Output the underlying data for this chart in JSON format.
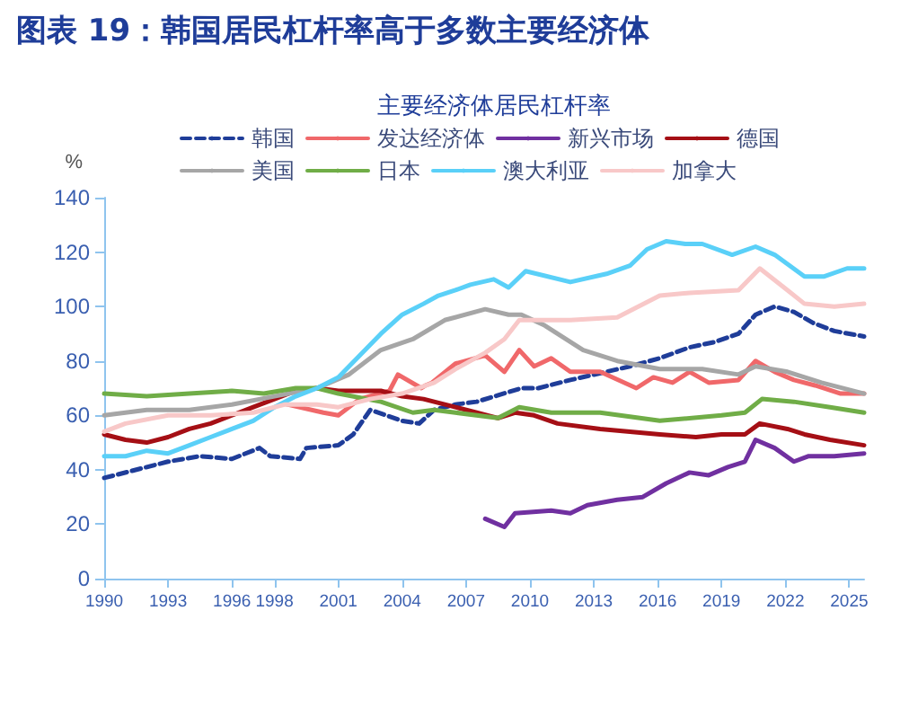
{
  "chart_data": {
    "type": "line",
    "title": "图表 19：韩国居民杠杆率高于多数主要经济体",
    "subtitle": "主要经济体居民杠杆率",
    "ylabel": "%",
    "xlim": [
      1990,
      2025.7
    ],
    "xticks": [
      1990,
      1993,
      1996,
      1998,
      2001,
      2004,
      2007,
      2010,
      2013,
      2016,
      2019,
      2022,
      2025
    ],
    "ylim": [
      0,
      140
    ],
    "yticks": [
      0,
      20,
      40,
      60,
      80,
      100,
      120,
      140
    ],
    "grid": false,
    "legend": "top",
    "marker": "none",
    "series": [
      {
        "name": "韩国",
        "color": "#1f3d99",
        "line_style": "dashed",
        "x": [
          1990,
          1993,
          1994.5,
          1996,
          1997.3,
          1997.8,
          1999.2,
          1999.5,
          2001,
          2001.7,
          2002.5,
          2004,
          2004.8,
          2005.5,
          2006.5,
          2007.5,
          2009.6,
          2010.4,
          2011.9,
          2014.7,
          2016.1,
          2017.5,
          2018.7,
          2019.8,
          2020.6,
          2021.5,
          2022.4,
          2023.3,
          2024.3,
          2025.7
        ],
        "values": [
          37,
          43,
          45,
          44,
          48,
          45,
          44,
          48,
          49,
          53,
          62,
          58,
          57,
          62,
          64,
          65,
          70,
          70,
          73,
          78,
          81,
          85,
          87,
          90,
          97,
          100,
          98,
          94,
          91,
          89
        ]
      },
      {
        "name": "发达经济体",
        "color": "#f0686a",
        "line_style": "solid",
        "x": [
          1998.6,
          2000.3,
          2001,
          2002,
          2003.4,
          2003.8,
          2004.9,
          2005.1,
          2005.4,
          2006.5,
          2007.9,
          2008.8,
          2009.5,
          2010.2,
          2011,
          2011.9,
          2013.3,
          2015,
          2015.8,
          2016.7,
          2017.5,
          2018.4,
          2019.8,
          2020.6,
          2021.5,
          2022.4,
          2023.4,
          2024.6,
          2025.7
        ],
        "values": [
          64,
          61,
          60,
          66,
          69,
          75,
          70,
          71,
          72,
          79,
          82,
          76,
          84,
          78,
          81,
          76,
          76,
          70,
          74,
          72,
          76,
          72,
          73,
          80,
          76,
          73,
          71,
          68,
          68
        ]
      },
      {
        "name": "新兴市场",
        "color": "#7030a0",
        "line_style": "solid",
        "x": [
          2007.9,
          2008.8,
          2009.3,
          2011,
          2011.9,
          2012.7,
          2014.1,
          2015.3,
          2016.4,
          2017.5,
          2018.4,
          2019.3,
          2020.1,
          2020.6,
          2021.5,
          2022.4,
          2023.1,
          2024.3,
          2025.7
        ],
        "values": [
          22,
          19,
          24,
          25,
          24,
          27,
          29,
          30,
          35,
          39,
          38,
          41,
          43,
          51,
          48,
          43,
          45,
          45,
          46
        ]
      },
      {
        "name": "德国",
        "color": "#a50f15",
        "line_style": "solid",
        "x": [
          1990,
          1991,
          1992,
          1993,
          1994,
          1995,
          1996,
          1997,
          1998,
          1999,
          2000,
          2001,
          2003,
          2004,
          2005,
          2006.5,
          2007.5,
          2008.5,
          2009.3,
          2010.2,
          2011.3,
          2013.3,
          2014.7,
          2016.1,
          2017.8,
          2019,
          2020.1,
          2020.8,
          2022.1,
          2022.9,
          2024.1,
          2025.7
        ],
        "values": [
          53,
          51,
          50,
          52,
          55,
          57,
          60,
          63,
          66,
          69,
          70,
          69,
          69,
          67,
          66,
          63,
          61,
          59,
          61,
          60,
          57,
          55,
          54,
          53,
          52,
          53,
          53,
          57,
          55,
          53,
          51,
          49
        ]
      },
      {
        "name": "美国",
        "color": "#a6a6a6",
        "line_style": "solid",
        "x": [
          1990,
          1992,
          1994,
          1996,
          1998,
          2000,
          2001.5,
          2003,
          2004.5,
          2006,
          2007.9,
          2009,
          2009.6,
          2010.7,
          2012.5,
          2014.1,
          2016.1,
          2018.1,
          2019.8,
          2020.6,
          2022.1,
          2023.7,
          2025.7
        ],
        "values": [
          60,
          62,
          62,
          64,
          67,
          70,
          75,
          84,
          88,
          95,
          99,
          97,
          97,
          93,
          84,
          80,
          77,
          77,
          75,
          78,
          76,
          72,
          68
        ]
      },
      {
        "name": "日本",
        "color": "#70ad47",
        "line_style": "solid",
        "x": [
          1990,
          1992,
          1994,
          1996,
          1997.5,
          1999,
          2000,
          2001,
          2003,
          2004.5,
          2005.5,
          2006.5,
          2008.5,
          2009.5,
          2011,
          2013.3,
          2016.1,
          2019,
          2020.1,
          2020.9,
          2022.4,
          2024.1,
          2025.7
        ],
        "values": [
          68,
          67,
          68,
          69,
          68,
          70,
          70,
          68,
          65,
          61,
          62,
          61,
          59,
          63,
          61,
          61,
          58,
          60,
          61,
          66,
          65,
          63,
          61
        ]
      },
      {
        "name": "澳大利亚",
        "color": "#5ad0f8",
        "line_style": "solid",
        "x": [
          1990,
          1991,
          1992,
          1993,
          1994,
          1995,
          1996,
          1997,
          1998,
          1999,
          2000,
          2001,
          2002,
          2003,
          2004,
          2005,
          2005.7,
          2006.5,
          2007.2,
          2008.3,
          2009,
          2009.8,
          2011.9,
          2013.6,
          2014.7,
          2015.5,
          2016.4,
          2017.3,
          2018.1,
          2019.5,
          2020.6,
          2021.5,
          2022.9,
          2023.8,
          2024.9,
          2025.7
        ],
        "values": [
          45,
          45,
          47,
          46,
          49,
          52,
          55,
          58,
          63,
          67,
          70,
          74,
          82,
          90,
          97,
          101,
          104,
          106,
          108,
          110,
          107,
          113,
          109,
          112,
          115,
          121,
          124,
          123,
          123,
          119,
          122,
          119,
          111,
          111,
          114,
          114
        ]
      },
      {
        "name": "加拿大",
        "color": "#f8c8c8",
        "line_style": "solid",
        "x": [
          1990,
          1991,
          1993,
          1995,
          1997,
          1998.5,
          2000,
          2001,
          2002.5,
          2004,
          2005.5,
          2006.5,
          2007.9,
          2008.8,
          2009.5,
          2011.9,
          2014.1,
          2016.1,
          2017.5,
          2019.8,
          2020.8,
          2022.1,
          2022.9,
          2024.3,
          2025.7
        ],
        "values": [
          54,
          57,
          60,
          60,
          61,
          64,
          64,
          63,
          66,
          68,
          72,
          77,
          83,
          88,
          95,
          95,
          96,
          104,
          105,
          106,
          114,
          106,
          101,
          100,
          101
        ]
      }
    ]
  }
}
